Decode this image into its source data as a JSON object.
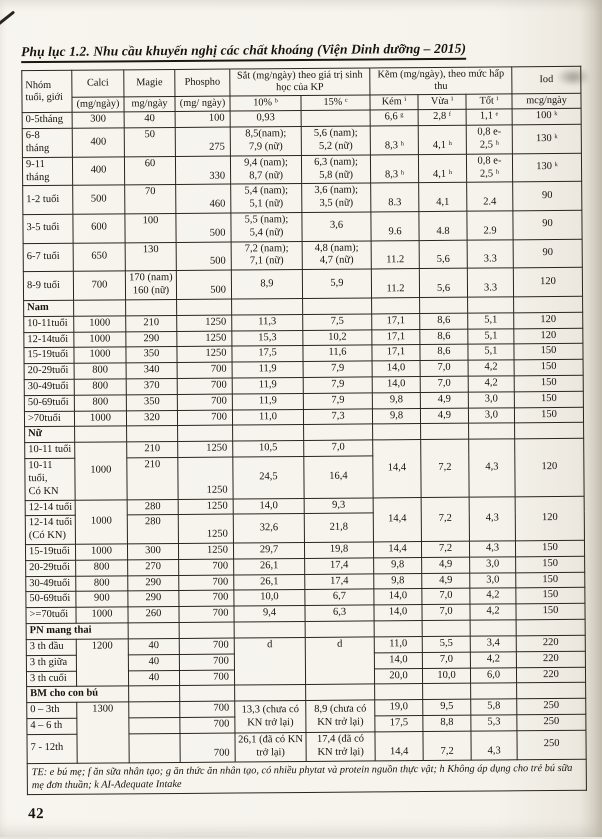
{
  "title": "Phụ lục 1.2. Nhu cầu khuyến nghị các chất khoáng (Viện Dinh dưỡng – 2015)",
  "page_number": "42",
  "table": {
    "header": {
      "age_group": "Nhóm tuổi, giới",
      "calci": "Calci",
      "calci_unit": "(mg/ngày)",
      "magie": "Magie",
      "magie_unit": "mg/ngày",
      "phospho": "Phospho",
      "phospho_unit": "(mg/ ngày)",
      "iron_group": "Sắt (mg/ngày) theo giá trị sinh học của KP",
      "iron_10": "10% ᵇ",
      "iron_15": "15% ᶜ",
      "zinc_group": "Kẽm (mg/ngày), theo mức hấp thu",
      "zinc_low": "Kém ⁱ",
      "zinc_mid": "Vừa ⁱ",
      "zinc_high": "Tốt ⁱ",
      "iod": "Iod",
      "iod_unit": "mcg/ngày"
    },
    "rows": [
      {
        "type": "data",
        "cells": [
          {
            "t": "0-5tháng"
          },
          {
            "t": "300"
          },
          {
            "t": "40"
          },
          {
            "t": "100"
          },
          {
            "t": "0,93"
          },
          {
            "t": ""
          },
          {
            "t": "6,6 ᵍ"
          },
          {
            "t": "2,8 ᶠ"
          },
          {
            "t": "1,1 ᵉ"
          },
          {
            "t": "100 ᵏ"
          }
        ]
      },
      {
        "type": "data",
        "cells": [
          {
            "t": "6-8\ntháng"
          },
          {
            "t": "400"
          },
          {
            "t": "50"
          },
          {
            "t": "275"
          },
          {
            "t": "8,5(nam);\n7,9 (nữ)"
          },
          {
            "t": "5,6 (nam);\n5,2 (nữ)"
          },
          {
            "t": "8,3 ʰ"
          },
          {
            "t": "4,1 ʰ"
          },
          {
            "t": "0,8 e-\n2,5 ʰ"
          },
          {
            "t": "130 ᵏ"
          }
        ]
      },
      {
        "type": "data",
        "cells": [
          {
            "t": "9-11\ntháng"
          },
          {
            "t": "400"
          },
          {
            "t": "60"
          },
          {
            "t": "330"
          },
          {
            "t": "9,4 (nam);\n8,7 (nữ)"
          },
          {
            "t": "6,3 (nam);\n5,8 (nữ)"
          },
          {
            "t": "8,3 ʰ"
          },
          {
            "t": "4,1 ʰ"
          },
          {
            "t": "0,8 e-\n2,5 ʰ"
          },
          {
            "t": "130 ᵏ"
          }
        ]
      },
      {
        "type": "data",
        "cells": [
          {
            "t": "1-2 tuổi"
          },
          {
            "t": "500"
          },
          {
            "t": "70"
          },
          {
            "t": "460"
          },
          {
            "t": "5,4 (nam);\n5,1 (nữ)"
          },
          {
            "t": "3,6 (nam);\n3,5 (nữ)"
          },
          {
            "t": "8.3"
          },
          {
            "t": "4,1"
          },
          {
            "t": "2.4"
          },
          {
            "t": "90"
          }
        ]
      },
      {
        "type": "data",
        "cells": [
          {
            "t": "3-5 tuổi"
          },
          {
            "t": "600"
          },
          {
            "t": "100"
          },
          {
            "t": "500"
          },
          {
            "t": "5,5 (nam);\n5,4 (nữ)"
          },
          {
            "t": "3,6"
          },
          {
            "t": "9.6"
          },
          {
            "t": "4.8"
          },
          {
            "t": "2.9"
          },
          {
            "t": "90"
          }
        ]
      },
      {
        "type": "data",
        "cells": [
          {
            "t": "6-7 tuổi"
          },
          {
            "t": "650"
          },
          {
            "t": "130"
          },
          {
            "t": "500"
          },
          {
            "t": "7,2 (nam);\n7,1 (nữ)"
          },
          {
            "t": "4,8 (nam);\n4,7 (nữ)"
          },
          {
            "t": "11.2"
          },
          {
            "t": "5,6"
          },
          {
            "t": "3.3"
          },
          {
            "t": "90"
          }
        ]
      },
      {
        "type": "data",
        "cells": [
          {
            "t": "8-9 tuổi"
          },
          {
            "t": "700"
          },
          {
            "t": "170 (nam)\n160 (nữ)"
          },
          {
            "t": "500"
          },
          {
            "t": "8,9"
          },
          {
            "t": "5,9"
          },
          {
            "t": "11.2"
          },
          {
            "t": "5,6"
          },
          {
            "t": "3.3"
          },
          {
            "t": "120"
          }
        ]
      },
      {
        "type": "section",
        "cells": [
          {
            "t": "Nam"
          },
          {
            "t": ""
          },
          {
            "t": ""
          },
          {
            "t": ""
          },
          {
            "t": ""
          },
          {
            "t": ""
          },
          {
            "t": ""
          },
          {
            "t": ""
          },
          {
            "t": ""
          },
          {
            "t": ""
          }
        ]
      },
      {
        "type": "data",
        "cells": [
          {
            "t": "10-11tuổi"
          },
          {
            "t": "1000"
          },
          {
            "t": "210"
          },
          {
            "t": "1250"
          },
          {
            "t": "11,3"
          },
          {
            "t": "7,5"
          },
          {
            "t": "17,1"
          },
          {
            "t": "8,6"
          },
          {
            "t": "5,1"
          },
          {
            "t": "120"
          }
        ]
      },
      {
        "type": "data",
        "cells": [
          {
            "t": "12-14tuổi"
          },
          {
            "t": "1000"
          },
          {
            "t": "290"
          },
          {
            "t": "1250"
          },
          {
            "t": "15,3"
          },
          {
            "t": "10,2"
          },
          {
            "t": "17,1"
          },
          {
            "t": "8,6"
          },
          {
            "t": "5,1"
          },
          {
            "t": "120"
          }
        ]
      },
      {
        "type": "data",
        "cells": [
          {
            "t": "15-19tuổi"
          },
          {
            "t": "1000"
          },
          {
            "t": "350"
          },
          {
            "t": "1250"
          },
          {
            "t": "17,5"
          },
          {
            "t": "11,6"
          },
          {
            "t": "17,1"
          },
          {
            "t": "8,6"
          },
          {
            "t": "5,1"
          },
          {
            "t": "150"
          }
        ]
      },
      {
        "type": "data",
        "cells": [
          {
            "t": "20-29tuổi"
          },
          {
            "t": "800"
          },
          {
            "t": "340"
          },
          {
            "t": "700"
          },
          {
            "t": "11,9"
          },
          {
            "t": "7,9"
          },
          {
            "t": "14,0"
          },
          {
            "t": "7,0"
          },
          {
            "t": "4,2"
          },
          {
            "t": "150"
          }
        ]
      },
      {
        "type": "data",
        "cells": [
          {
            "t": "30-49tuổi"
          },
          {
            "t": "800"
          },
          {
            "t": "370"
          },
          {
            "t": "700"
          },
          {
            "t": "11,9"
          },
          {
            "t": "7,9"
          },
          {
            "t": "14,0"
          },
          {
            "t": "7,0"
          },
          {
            "t": "4,2"
          },
          {
            "t": "150"
          }
        ]
      },
      {
        "type": "data",
        "cells": [
          {
            "t": "50-69tuổi"
          },
          {
            "t": "800"
          },
          {
            "t": "350"
          },
          {
            "t": "700"
          },
          {
            "t": "11,9"
          },
          {
            "t": "7,9"
          },
          {
            "t": "9,8"
          },
          {
            "t": "4,9"
          },
          {
            "t": "3,0"
          },
          {
            "t": "150"
          }
        ]
      },
      {
        "type": "data",
        "cells": [
          {
            "t": ">70tuổi"
          },
          {
            "t": "1000"
          },
          {
            "t": "320"
          },
          {
            "t": "700"
          },
          {
            "t": "11,0"
          },
          {
            "t": "7,3"
          },
          {
            "t": "9,8"
          },
          {
            "t": "4,9"
          },
          {
            "t": "3,0"
          },
          {
            "t": "150"
          }
        ]
      },
      {
        "type": "section",
        "cells": [
          {
            "t": "Nữ"
          },
          {
            "t": ""
          },
          {
            "t": ""
          },
          {
            "t": ""
          },
          {
            "t": ""
          },
          {
            "t": ""
          },
          {
            "t": ""
          },
          {
            "t": ""
          },
          {
            "t": ""
          },
          {
            "t": ""
          }
        ]
      },
      {
        "type": "data",
        "cells": [
          {
            "t": "10-11 tuổi"
          },
          {
            "t": "1000",
            "rs": 2
          },
          {
            "t": "210"
          },
          {
            "t": "1250"
          },
          {
            "t": "10,5"
          },
          {
            "t": "7,0"
          },
          {
            "t": "14,4",
            "rs": 2
          },
          {
            "t": "7,2",
            "rs": 2
          },
          {
            "t": "4,3",
            "rs": 2
          },
          {
            "t": "120",
            "rs": 2
          }
        ]
      },
      {
        "type": "data",
        "cells": [
          {
            "t": "10-11 tuổi,\nCó KN"
          },
          {
            "t": "210"
          },
          {
            "t": "1250"
          },
          {
            "t": "24,5"
          },
          {
            "t": "16,4"
          }
        ]
      },
      {
        "type": "data",
        "cells": [
          {
            "t": "12-14 tuổi"
          },
          {
            "t": "1000",
            "rs": 2
          },
          {
            "t": "280"
          },
          {
            "t": "1250"
          },
          {
            "t": "14,0"
          },
          {
            "t": "9,3"
          },
          {
            "t": "14,4",
            "rs": 2
          },
          {
            "t": "7,2",
            "rs": 2
          },
          {
            "t": "4,3",
            "rs": 2
          },
          {
            "t": "120",
            "rs": 2
          }
        ]
      },
      {
        "type": "data",
        "cells": [
          {
            "t": "12-14 tuổi\n(Có KN)"
          },
          {
            "t": "280"
          },
          {
            "t": "1250"
          },
          {
            "t": "32,6"
          },
          {
            "t": "21,8"
          }
        ]
      },
      {
        "type": "data",
        "cells": [
          {
            "t": "15-19tuổi"
          },
          {
            "t": "1000"
          },
          {
            "t": "300"
          },
          {
            "t": "1250"
          },
          {
            "t": "29,7"
          },
          {
            "t": "19,8"
          },
          {
            "t": "14,4"
          },
          {
            "t": "7,2"
          },
          {
            "t": "4,3"
          },
          {
            "t": "150"
          }
        ]
      },
      {
        "type": "data",
        "cells": [
          {
            "t": "20-29tuổi"
          },
          {
            "t": "800"
          },
          {
            "t": "270"
          },
          {
            "t": "700"
          },
          {
            "t": "26,1"
          },
          {
            "t": "17,4"
          },
          {
            "t": "9,8"
          },
          {
            "t": "4,9"
          },
          {
            "t": "3,0"
          },
          {
            "t": "150"
          }
        ]
      },
      {
        "type": "data",
        "cells": [
          {
            "t": "30-49tuổi"
          },
          {
            "t": "800"
          },
          {
            "t": "290"
          },
          {
            "t": "700"
          },
          {
            "t": "26,1"
          },
          {
            "t": "17,4"
          },
          {
            "t": "9,8"
          },
          {
            "t": "4,9"
          },
          {
            "t": "3,0"
          },
          {
            "t": "150"
          }
        ]
      },
      {
        "type": "data",
        "cells": [
          {
            "t": "50-69tuổi"
          },
          {
            "t": "900"
          },
          {
            "t": "290"
          },
          {
            "t": "700"
          },
          {
            "t": "10,0"
          },
          {
            "t": "6,7"
          },
          {
            "t": "14,0"
          },
          {
            "t": "7,0"
          },
          {
            "t": "4,2"
          },
          {
            "t": "150"
          }
        ]
      },
      {
        "type": "data",
        "cells": [
          {
            "t": ">=70tuổi"
          },
          {
            "t": "1000"
          },
          {
            "t": "260"
          },
          {
            "t": "700"
          },
          {
            "t": "9,4"
          },
          {
            "t": "6,3"
          },
          {
            "t": "14,0"
          },
          {
            "t": "7,0"
          },
          {
            "t": "4,2"
          },
          {
            "t": "150"
          }
        ]
      },
      {
        "type": "section",
        "cells": [
          {
            "t": "PN mang thai",
            "cs": 2
          },
          {
            "t": ""
          },
          {
            "t": ""
          },
          {
            "t": ""
          },
          {
            "t": ""
          },
          {
            "t": ""
          },
          {
            "t": ""
          },
          {
            "t": ""
          },
          {
            "t": ""
          }
        ]
      },
      {
        "type": "data",
        "cells": [
          {
            "t": "3 th đầu"
          },
          {
            "t": "1200",
            "rs": 3
          },
          {
            "t": "40"
          },
          {
            "t": "700"
          },
          {
            "t": "d",
            "rs": 3
          },
          {
            "t": "d",
            "rs": 3
          },
          {
            "t": "11,0"
          },
          {
            "t": "5,5"
          },
          {
            "t": "3,4"
          },
          {
            "t": "220"
          }
        ]
      },
      {
        "type": "data",
        "cells": [
          {
            "t": "3 th giữa"
          },
          {
            "t": "40"
          },
          {
            "t": "700"
          },
          {
            "t": "14,0"
          },
          {
            "t": "7,0"
          },
          {
            "t": "4,2"
          },
          {
            "t": "220"
          }
        ]
      },
      {
        "type": "data",
        "cells": [
          {
            "t": "3 th cuối"
          },
          {
            "t": "40"
          },
          {
            "t": "700"
          },
          {
            "t": "20,0"
          },
          {
            "t": "10,0"
          },
          {
            "t": "6,0"
          },
          {
            "t": "220"
          }
        ]
      },
      {
        "type": "section",
        "cells": [
          {
            "t": "BM cho con bú",
            "cs": 2
          },
          {
            "t": ""
          },
          {
            "t": ""
          },
          {
            "t": ""
          },
          {
            "t": ""
          },
          {
            "t": ""
          },
          {
            "t": ""
          },
          {
            "t": ""
          },
          {
            "t": ""
          }
        ]
      },
      {
        "type": "data",
        "cells": [
          {
            "t": "0 – 3th"
          },
          {
            "t": "1300",
            "rs": 3
          },
          {
            "t": ""
          },
          {
            "t": "700"
          },
          {
            "t": "13,3 (chưa có\nKN trở lại)",
            "rs": 2
          },
          {
            "t": "8,9 (chưa có\nKN trở lại)",
            "rs": 2
          },
          {
            "t": "19,0"
          },
          {
            "t": "9,5"
          },
          {
            "t": "5,8"
          },
          {
            "t": "250"
          }
        ]
      },
      {
        "type": "data",
        "cells": [
          {
            "t": "4 – 6 th"
          },
          {
            "t": ""
          },
          {
            "t": "700"
          },
          {
            "t": "17,5"
          },
          {
            "t": "8,8"
          },
          {
            "t": "5,3"
          },
          {
            "t": "250"
          }
        ]
      },
      {
        "type": "data",
        "cells": [
          {
            "t": "7 - 12th"
          },
          {
            "t": ""
          },
          {
            "t": "700"
          },
          {
            "t": "26,1 (đã có KN\ntrở lại)"
          },
          {
            "t": "17,4 (đã có\nKN trở lại)"
          },
          {
            "t": "14,4"
          },
          {
            "t": "7,2"
          },
          {
            "t": "4,3"
          },
          {
            "t": "250"
          }
        ]
      }
    ],
    "footnote": "TE: e bú  mẹ; f ăn sữa nhân tạo; g ăn thức ăn nhân tạo, có nhiều phytat và protein nguồn thực vật; h Không áp dụng cho trẻ bú sữa mẹ đơn thuần; k AI-Adequate Intake"
  }
}
